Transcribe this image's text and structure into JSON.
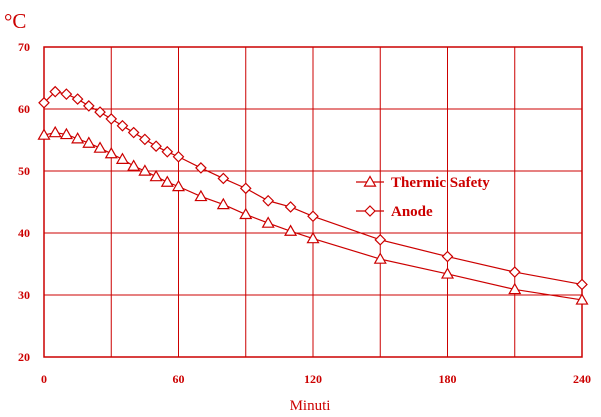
{
  "chart_data": {
    "type": "line",
    "ylabel": "°C",
    "xlabel": "Minuti",
    "xlim": [
      0,
      240
    ],
    "ylim": [
      20,
      70
    ],
    "xticks": [
      "0",
      "60",
      "120",
      "180",
      "240"
    ],
    "yticks": [
      "20",
      "30",
      "40",
      "50",
      "60",
      "70"
    ],
    "x_grid_step": 30,
    "y_grid_step": 10,
    "grid": true,
    "legend_position": "center-right",
    "color": "#cc0000",
    "series": [
      {
        "name": "Thermic Safety",
        "marker": "triangle",
        "x": [
          0,
          5,
          10,
          15,
          20,
          25,
          30,
          35,
          40,
          45,
          50,
          55,
          60,
          70,
          80,
          90,
          100,
          110,
          120,
          150,
          180,
          210,
          240
        ],
        "y": [
          55.8,
          56.2,
          55.9,
          55.2,
          54.5,
          53.7,
          52.8,
          51.9,
          50.8,
          50.0,
          49.1,
          48.2,
          47.5,
          45.9,
          44.6,
          43.0,
          41.6,
          40.3,
          39.1,
          35.8,
          33.4,
          30.9,
          29.2
        ]
      },
      {
        "name": "Anode",
        "marker": "diamond",
        "x": [
          0,
          5,
          10,
          15,
          20,
          25,
          30,
          35,
          40,
          45,
          50,
          55,
          60,
          70,
          80,
          90,
          100,
          110,
          120,
          150,
          180,
          210,
          240
        ],
        "y": [
          61.0,
          62.8,
          62.4,
          61.6,
          60.5,
          59.5,
          58.4,
          57.3,
          56.2,
          55.1,
          54.0,
          53.1,
          52.3,
          50.5,
          48.8,
          47.2,
          45.2,
          44.2,
          42.7,
          38.9,
          36.2,
          33.7,
          31.7
        ]
      }
    ]
  }
}
